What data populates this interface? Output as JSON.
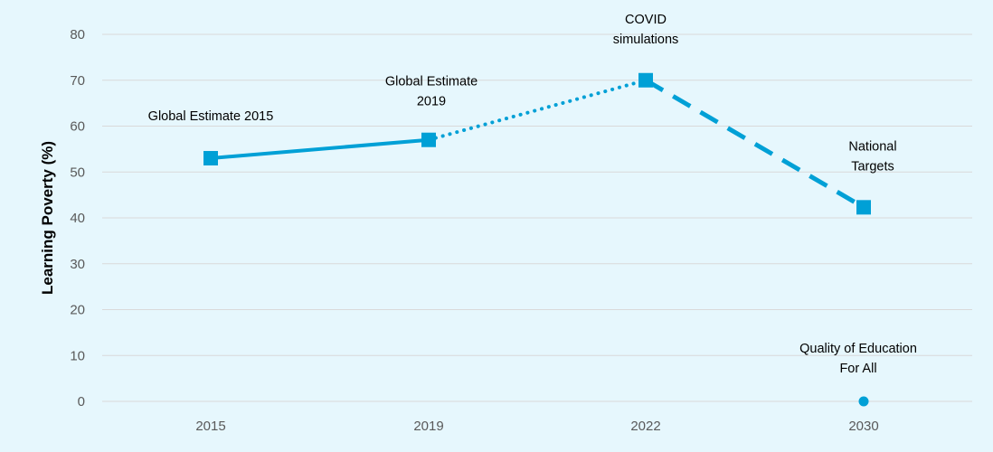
{
  "chart_data": {
    "type": "line",
    "title": "",
    "xlabel": "",
    "ylabel": "Learning Poverty (%)",
    "ylim": [
      0,
      80
    ],
    "yticks": [
      0,
      10,
      20,
      30,
      40,
      50,
      60,
      70,
      80
    ],
    "categories": [
      "2015",
      "2019",
      "2022",
      "2030"
    ],
    "grid": true,
    "legend": "none",
    "colors": {
      "series": "#00a0d6",
      "grid": "#d9d9d9",
      "background": "#e6f7fd"
    },
    "points": [
      {
        "x": "2015",
        "y": 53,
        "marker": "square"
      },
      {
        "x": "2019",
        "y": 57,
        "marker": "square"
      },
      {
        "x": "2022",
        "y": 70,
        "marker": "square"
      },
      {
        "x": "2030",
        "y": 42.3,
        "marker": "square"
      },
      {
        "x": "2030",
        "y": 0,
        "marker": "circle"
      }
    ],
    "segments": [
      {
        "from": [
          "2015",
          53
        ],
        "to": [
          "2019",
          57
        ],
        "style": "solid"
      },
      {
        "from": [
          "2019",
          57
        ],
        "to": [
          "2022",
          70
        ],
        "style": "dotted"
      },
      {
        "from": [
          "2022",
          70
        ],
        "to": [
          "2030",
          42.3
        ],
        "style": "dashed"
      }
    ],
    "annotations": [
      {
        "lines": [
          "Global Estimate 2015"
        ],
        "x": "2015",
        "y": 53
      },
      {
        "lines": [
          "Global Estimate",
          "2019"
        ],
        "x": "2019",
        "y": 57
      },
      {
        "lines": [
          "COVID",
          "simulations"
        ],
        "x": "2022",
        "y": 70
      },
      {
        "lines": [
          "National",
          "Targets"
        ],
        "x": "2030",
        "y": 42.3
      },
      {
        "lines": [
          "Quality of Education",
          "For All"
        ],
        "x": "2030",
        "y": 0
      }
    ]
  }
}
